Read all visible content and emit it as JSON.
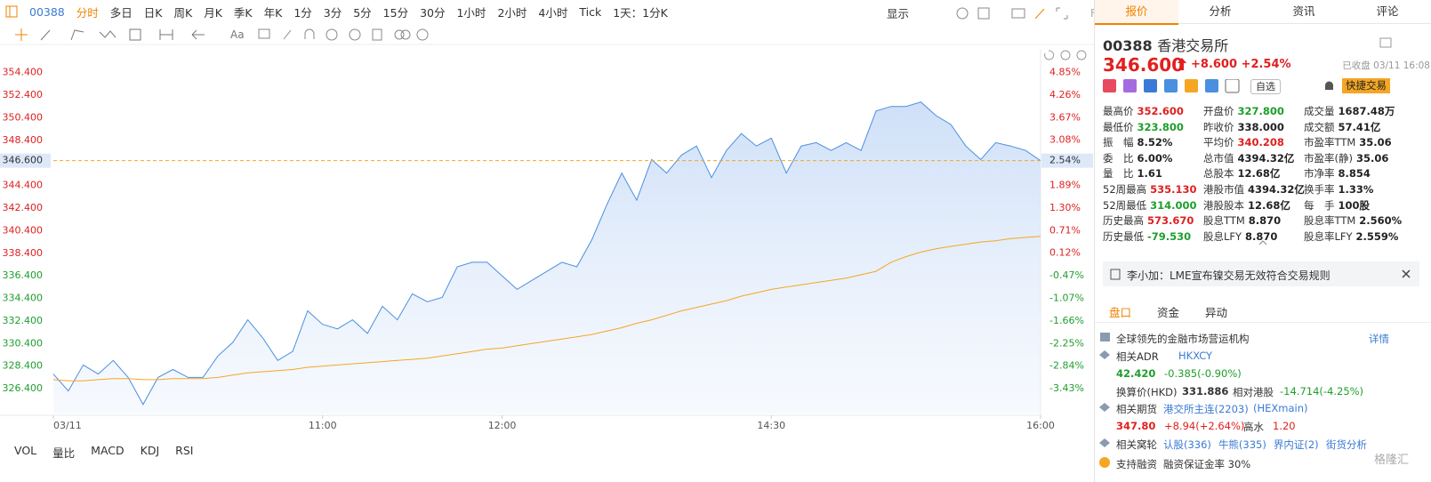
{
  "toolbar": {
    "code": "00388",
    "periods": [
      "分时",
      "多日",
      "日K",
      "周K",
      "月K",
      "季K",
      "年K",
      "1分",
      "3分",
      "5分",
      "15分",
      "30分",
      "1小时",
      "2小时",
      "4小时",
      "Tick",
      "1天：1分K"
    ],
    "display": "显示",
    "fio": "FIO"
  },
  "drawing_tools": {
    "font": "Aa"
  },
  "chart_data": {
    "type": "line",
    "x": [
      "09:30",
      "09:35",
      "09:40",
      "09:45",
      "09:50",
      "09:55",
      "10:00",
      "10:05",
      "10:10",
      "10:15",
      "10:20",
      "10:25",
      "10:30",
      "10:35",
      "10:40",
      "10:45",
      "10:50",
      "10:55",
      "11:00",
      "11:05",
      "11:10",
      "11:15",
      "11:20",
      "11:25",
      "11:30",
      "11:35",
      "11:40",
      "11:45",
      "11:50",
      "11:55",
      "12:00",
      "13:05",
      "13:10",
      "13:15",
      "13:20",
      "13:25",
      "13:30",
      "13:35",
      "13:40",
      "13:45",
      "13:50",
      "13:55",
      "14:00",
      "14:05",
      "14:10",
      "14:15",
      "14:20",
      "14:25",
      "14:30",
      "14:35",
      "14:40",
      "14:45",
      "14:50",
      "14:55",
      "15:00",
      "15:05",
      "15:10",
      "15:15",
      "15:20",
      "15:25",
      "15:30",
      "15:35",
      "15:40",
      "15:45",
      "15:50",
      "15:55",
      "16:00"
    ],
    "series": [
      {
        "name": "价格",
        "color": "#4a8fe0",
        "area": true,
        "values": [
          327.7,
          326.2,
          328.5,
          327.7,
          328.9,
          327.4,
          325.0,
          327.4,
          328.1,
          327.4,
          327.4,
          329.3,
          330.5,
          332.5,
          330.9,
          328.9,
          329.7,
          333.3,
          332.1,
          331.7,
          332.5,
          331.3,
          333.7,
          332.5,
          334.8,
          334.1,
          334.5,
          337.2,
          337.6,
          337.6,
          336.4,
          335.2,
          336.0,
          336.8,
          337.6,
          337.2,
          339.6,
          342.7,
          345.5,
          343.1,
          346.7,
          345.5,
          347.1,
          347.9,
          345.1,
          347.5,
          349.0,
          347.9,
          348.6,
          345.5,
          347.9,
          348.2,
          347.5,
          348.2,
          347.5,
          351.0,
          351.4,
          351.4,
          351.8,
          350.6,
          349.8,
          347.9,
          346.7,
          348.2,
          347.9,
          347.5,
          346.6
        ]
      },
      {
        "name": "均价",
        "color": "#f5a623",
        "area": false,
        "values": [
          327.2,
          327.1,
          327.1,
          327.2,
          327.3,
          327.3,
          327.2,
          327.2,
          327.3,
          327.3,
          327.3,
          327.4,
          327.6,
          327.8,
          327.9,
          328.0,
          328.1,
          328.3,
          328.4,
          328.5,
          328.6,
          328.7,
          328.8,
          328.9,
          329.0,
          329.1,
          329.3,
          329.5,
          329.7,
          329.9,
          330.0,
          330.2,
          330.4,
          330.6,
          330.8,
          331.0,
          331.2,
          331.5,
          331.8,
          332.2,
          332.5,
          332.9,
          333.3,
          333.6,
          333.9,
          334.2,
          334.6,
          334.9,
          335.2,
          335.4,
          335.6,
          335.8,
          336.0,
          336.2,
          336.5,
          336.8,
          337.6,
          338.1,
          338.5,
          338.8,
          339.0,
          339.2,
          339.4,
          339.5,
          339.7,
          339.8,
          339.9
        ]
      }
    ],
    "xticks": [
      {
        "value": "09:30",
        "label": "03/11"
      },
      "11:00",
      "12:00",
      "14:30",
      "16:00"
    ],
    "ylim": [
      324.2,
      356.5
    ],
    "yticks": [
      {
        "value": 326.4,
        "label": "326.400"
      },
      {
        "value": 328.4,
        "label": "328.400"
      },
      {
        "value": 330.4,
        "label": "330.400"
      },
      {
        "value": 332.4,
        "label": "332.400"
      },
      {
        "value": 334.4,
        "label": "334.400"
      },
      {
        "value": 336.4,
        "label": "336.400"
      },
      {
        "value": 338.4,
        "label": "338.400"
      },
      {
        "value": 340.4,
        "label": "340.400"
      },
      {
        "value": 342.4,
        "label": "342.400"
      },
      {
        "value": 344.4,
        "label": "344.400"
      },
      {
        "value": 348.4,
        "label": "348.400"
      },
      {
        "value": 350.4,
        "label": "350.400"
      },
      {
        "value": 352.4,
        "label": "352.400"
      },
      {
        "value": 354.4,
        "label": "354.400"
      }
    ],
    "y2lim": [
      -4.083,
      5.473
    ],
    "y2ticks": [
      {
        "value": -3.43,
        "label": "-3.43%"
      },
      {
        "value": -2.84,
        "label": "-2.84%"
      },
      {
        "value": -2.25,
        "label": "-2.25%"
      },
      {
        "value": -1.66,
        "label": "-1.66%"
      },
      {
        "value": -1.07,
        "label": "-1.07%"
      },
      {
        "value": -0.47,
        "label": "-0.47%"
      },
      {
        "value": 0.12,
        "label": "0.12%"
      },
      {
        "value": 0.71,
        "label": "0.71%"
      },
      {
        "value": 1.3,
        "label": "1.30%"
      },
      {
        "value": 1.89,
        "label": "1.89%"
      },
      {
        "value": 3.08,
        "label": "3.08%"
      },
      {
        "value": 3.67,
        "label": "3.67%"
      },
      {
        "value": 4.26,
        "label": "4.26%"
      },
      {
        "value": 4.85,
        "label": "4.85%"
      }
    ],
    "baseline": 338,
    "up_color": "#e02020",
    "down_color": "#1e9e2c",
    "grid": false,
    "last": {
      "value": 346.6,
      "label": "346.600",
      "pct_label": "2.54%"
    }
  },
  "indicators": [
    "VOL",
    "量比",
    "MACD",
    "KDJ",
    "RSI"
  ],
  "panel": {
    "tabs": [
      "报价",
      "分析",
      "资讯",
      "评论"
    ],
    "code": "00388",
    "name": "香港交易所",
    "price": "346.600",
    "change": "+8.600",
    "change_pct": "+2.54%",
    "status": "已收盘 03/11 16:08",
    "watchlist": "自选",
    "quick_trade": "快捷交易",
    "stats": [
      {
        "label": "最高价",
        "value": "352.600",
        "color": "up"
      },
      {
        "label": "开盘价",
        "value": "327.800",
        "color": "down"
      },
      {
        "label": "成交量",
        "value": "1687.48万",
        "color": "flat"
      },
      {
        "label": "最低价",
        "value": "323.800",
        "color": "down"
      },
      {
        "label": "昨收价",
        "value": "338.000",
        "color": "flat"
      },
      {
        "label": "成交额",
        "value": "57.41亿",
        "color": "flat"
      },
      {
        "label": "振　幅",
        "value": "8.52%",
        "color": "flat"
      },
      {
        "label": "平均价",
        "value": "340.208",
        "color": "up"
      },
      {
        "label": "市盈率TTM",
        "value": "35.06",
        "color": "flat"
      },
      {
        "label": "委　比",
        "value": "6.00%",
        "color": "flat"
      },
      {
        "label": "总市值",
        "value": "4394.32亿",
        "color": "flat"
      },
      {
        "label": "市盈率(静)",
        "value": "35.06",
        "color": "flat"
      },
      {
        "label": "量　比",
        "value": "1.61",
        "color": "flat"
      },
      {
        "label": "总股本",
        "value": "12.68亿",
        "color": "flat"
      },
      {
        "label": "市净率",
        "value": "8.854",
        "color": "flat"
      },
      {
        "label": "52周最高",
        "value": "535.130",
        "color": "up"
      },
      {
        "label": "港股市值",
        "value": "4394.32亿",
        "color": "flat"
      },
      {
        "label": "换手率",
        "value": "1.33%",
        "color": "flat"
      },
      {
        "label": "52周最低",
        "value": "314.000",
        "color": "down"
      },
      {
        "label": "港股股本",
        "value": "12.68亿",
        "color": "flat"
      },
      {
        "label": "每　手",
        "value": "100股",
        "color": "flat"
      },
      {
        "label": "历史最高",
        "value": "573.670",
        "color": "up"
      },
      {
        "label": "股息TTM",
        "value": "8.870",
        "color": "flat"
      },
      {
        "label": "股息率TTM",
        "value": "2.560%",
        "color": "flat"
      },
      {
        "label": "历史最低",
        "value": "-79.530",
        "color": "down"
      },
      {
        "label": "股息LFY",
        "value": "8.870",
        "color": "flat"
      },
      {
        "label": "股息率LFY",
        "value": "2.559%",
        "color": "flat"
      }
    ],
    "news": "李小加：LME宣布镍交易无效符合交易规则",
    "subtabs": [
      "盘口",
      "资金",
      "异动"
    ],
    "profile": {
      "text": "全球领先的金融市场营运机构",
      "link": "详情"
    },
    "adr": {
      "label": "相关ADR",
      "code": "HKXCY",
      "price": "42.420",
      "change": "-0.385(-0.90%)",
      "conv_label": "换算价(HKD)",
      "conv_value": "331.886",
      "rel_label": "相对港股",
      "rel_value": "-14.714(-4.25%)"
    },
    "futures": {
      "label": "相关期货",
      "name": "港交所主连(2203)",
      "code": "(HEXmain)",
      "price": "347.80",
      "change": "+8.94(+2.64%)",
      "premium_label": "高水",
      "premium": "1.20"
    },
    "warrants": {
      "label": "相关窝轮",
      "items": [
        "认股(336)",
        "牛熊(335)",
        "界内证(2)"
      ],
      "link": "街货分析"
    },
    "margin": {
      "label": "支持融资",
      "text": "融资保证金率 30%"
    },
    "watermark": "格隆汇"
  }
}
